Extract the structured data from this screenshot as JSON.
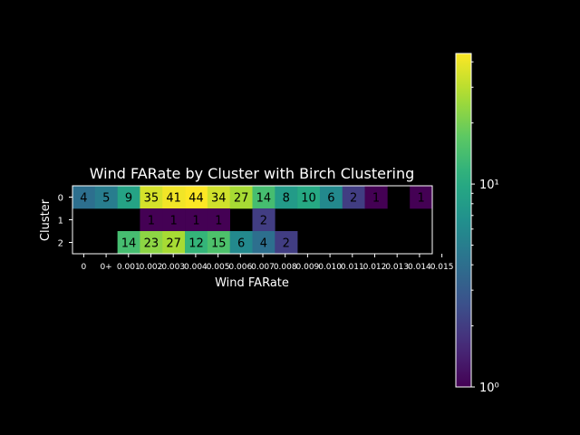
{
  "chart_data": {
    "type": "heatmap",
    "title": "Wind FARate by Cluster with Birch Clustering",
    "xlabel": "Wind FARate",
    "ylabel": "Cluster",
    "y_categories": [
      "0",
      "1",
      "2"
    ],
    "x_tick_labels": [
      "0",
      "0+",
      "0.001",
      "0.002",
      "0.003",
      "0.004",
      "0.005",
      "0.006",
      "0.007",
      "0.008",
      "0.009",
      "0.010",
      "0.011",
      "0.012",
      "0.013",
      "0.014",
      "0.015"
    ],
    "values": [
      [
        4,
        5,
        9,
        35,
        41,
        44,
        34,
        27,
        14,
        8,
        10,
        6,
        2,
        1,
        null,
        1
      ],
      [
        null,
        null,
        null,
        1,
        1,
        1,
        1,
        null,
        2,
        null,
        null,
        null,
        null,
        null,
        null,
        null
      ],
      [
        null,
        null,
        14,
        23,
        27,
        12,
        15,
        6,
        4,
        2,
        null,
        null,
        null,
        null,
        null,
        null
      ]
    ],
    "color_scale": "log",
    "colormap": "viridis",
    "vmin": 1,
    "vmax": 44,
    "colorbar_ticks": [
      {
        "value": 1,
        "label": "10⁰"
      },
      {
        "value": 10,
        "label": "10¹"
      }
    ],
    "background": "#000000",
    "text_color": "#ffffff",
    "cell_text_color": "#000000"
  }
}
